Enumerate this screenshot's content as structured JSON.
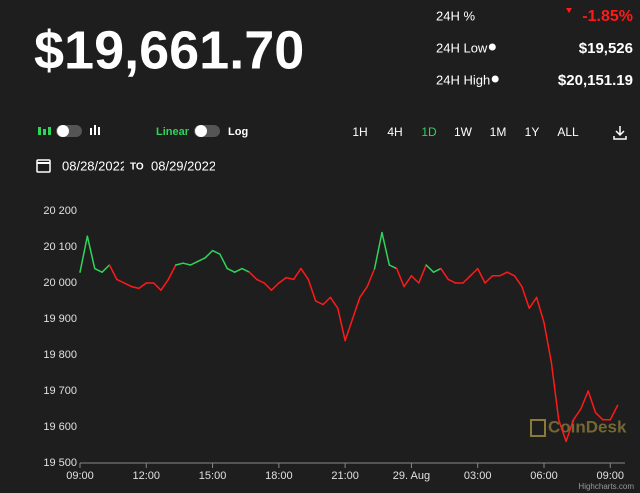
{
  "header": {
    "price": "$19,661.70",
    "stats": [
      {
        "label": "24H %",
        "value": "-1.85%"
      },
      {
        "label": "24H Low",
        "value": "$19,526"
      },
      {
        "label": "24H High",
        "value": "$20,151.19"
      }
    ]
  },
  "controls": {
    "scale_linear": "Linear",
    "scale_log": "Log",
    "ranges": [
      "1H",
      "4H",
      "1D",
      "1W",
      "1M",
      "1Y",
      "ALL"
    ],
    "active_range": "1D",
    "date_from": "08/28/2022",
    "date_to_label": "TO",
    "date_to": "08/29/2022"
  },
  "chart_data": {
    "type": "line",
    "color": "#ff1a1a",
    "up_color": "#2fd45a",
    "watermark": "CoinDesk",
    "credit": "Highcharts.com",
    "x": [
      "2022-08-28T09:00",
      "2022-08-28T09:20",
      "2022-08-28T09:40",
      "2022-08-28T10:00",
      "2022-08-28T10:20",
      "2022-08-28T10:40",
      "2022-08-28T11:00",
      "2022-08-28T11:20",
      "2022-08-28T11:40",
      "2022-08-28T12:00",
      "2022-08-28T12:20",
      "2022-08-28T12:40",
      "2022-08-28T13:00",
      "2022-08-28T13:20",
      "2022-08-28T13:40",
      "2022-08-28T14:00",
      "2022-08-28T14:20",
      "2022-08-28T14:40",
      "2022-08-28T15:00",
      "2022-08-28T15:20",
      "2022-08-28T15:40",
      "2022-08-28T16:00",
      "2022-08-28T16:20",
      "2022-08-28T16:40",
      "2022-08-28T17:00",
      "2022-08-28T17:20",
      "2022-08-28T17:40",
      "2022-08-28T18:00",
      "2022-08-28T18:20",
      "2022-08-28T18:40",
      "2022-08-28T19:00",
      "2022-08-28T19:20",
      "2022-08-28T19:40",
      "2022-08-28T20:00",
      "2022-08-28T20:20",
      "2022-08-28T20:40",
      "2022-08-28T21:00",
      "2022-08-28T21:20",
      "2022-08-28T21:40",
      "2022-08-28T22:00",
      "2022-08-28T22:20",
      "2022-08-28T22:40",
      "2022-08-28T23:00",
      "2022-08-28T23:20",
      "2022-08-28T23:40",
      "2022-08-29T00:00",
      "2022-08-29T00:20",
      "2022-08-29T00:40",
      "2022-08-29T01:00",
      "2022-08-29T01:20",
      "2022-08-29T01:40",
      "2022-08-29T02:00",
      "2022-08-29T02:20",
      "2022-08-29T02:40",
      "2022-08-29T03:00",
      "2022-08-29T03:20",
      "2022-08-29T03:40",
      "2022-08-29T04:00",
      "2022-08-29T04:20",
      "2022-08-29T04:40",
      "2022-08-29T05:00",
      "2022-08-29T05:20",
      "2022-08-29T05:40",
      "2022-08-29T06:00",
      "2022-08-29T06:20",
      "2022-08-29T06:40",
      "2022-08-29T07:00",
      "2022-08-29T07:20",
      "2022-08-29T07:40",
      "2022-08-29T08:00",
      "2022-08-29T08:20",
      "2022-08-29T08:40",
      "2022-08-29T09:00",
      "2022-08-29T09:20"
    ],
    "values": [
      20030,
      20130,
      20040,
      20030,
      20050,
      20010,
      20000,
      19990,
      19985,
      20000,
      20000,
      19980,
      20010,
      20050,
      20055,
      20050,
      20060,
      20070,
      20090,
      20080,
      20040,
      20030,
      20040,
      20030,
      20010,
      20000,
      19980,
      20000,
      20015,
      20010,
      20040,
      20010,
      19950,
      19940,
      19960,
      19930,
      19840,
      19900,
      19960,
      19990,
      20040,
      20140,
      20050,
      20040,
      19990,
      20020,
      20000,
      20050,
      20030,
      20040,
      20010,
      20000,
      20000,
      20020,
      20040,
      20000,
      20020,
      20020,
      20030,
      20020,
      19990,
      19930,
      19960,
      19890,
      19780,
      19620,
      19560,
      19620,
      19650,
      19700,
      19640,
      19620,
      19620,
      19660
    ],
    "xlim": [
      "2022-08-28T09:00",
      "2022-08-29T09:40"
    ],
    "xticks": [
      {
        "value": "2022-08-28T09:00",
        "label": "09:00"
      },
      {
        "value": "2022-08-28T12:00",
        "label": "12:00"
      },
      {
        "value": "2022-08-28T15:00",
        "label": "15:00"
      },
      {
        "value": "2022-08-28T18:00",
        "label": "18:00"
      },
      {
        "value": "2022-08-28T21:00",
        "label": "21:00"
      },
      {
        "value": "2022-08-29T00:00",
        "label": "29. Aug"
      },
      {
        "value": "2022-08-29T03:00",
        "label": "03:00"
      },
      {
        "value": "2022-08-29T06:00",
        "label": "06:00"
      },
      {
        "value": "2022-08-29T09:00",
        "label": "09:00"
      }
    ],
    "ylim": [
      19500,
      20200
    ],
    "yticks": [
      {
        "value": 19500,
        "label": "19 500"
      },
      {
        "value": 19600,
        "label": "19 600"
      },
      {
        "value": 19700,
        "label": "19 700"
      },
      {
        "value": 19800,
        "label": "19 800"
      },
      {
        "value": 19900,
        "label": "19 900"
      },
      {
        "value": 20000,
        "label": "20 000"
      },
      {
        "value": 20100,
        "label": "20 100"
      },
      {
        "value": 20200,
        "label": "20 200"
      }
    ]
  }
}
